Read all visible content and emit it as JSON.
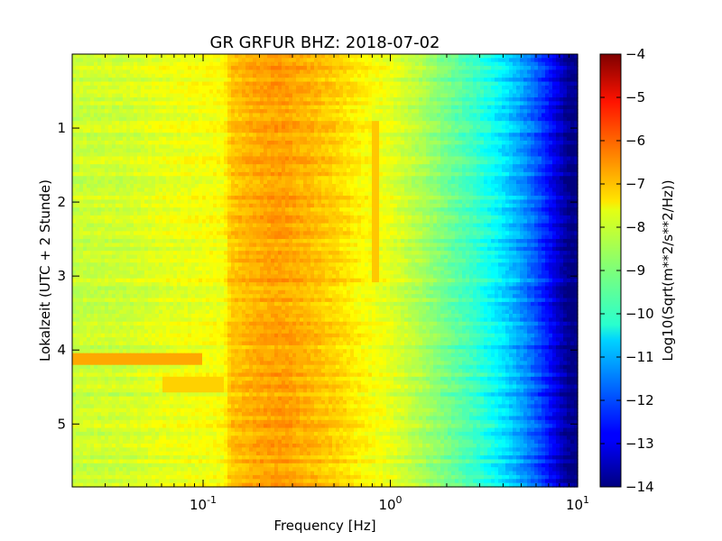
{
  "chart_data": {
    "type": "heatmap",
    "title": "GR GRFUR BHZ: 2018-07-02",
    "xlabel": "Frequency [Hz]",
    "ylabel": "Lokalzeit (UTC + 2 Stunde)",
    "xscale": "log",
    "xlim": [
      0.02,
      10
    ],
    "ylim": [
      5.85,
      0.0
    ],
    "y_axis_inverted": true,
    "x_tick_labels": [
      {
        "value": 0.1,
        "base": "10",
        "exp": "-1"
      },
      {
        "value": 1,
        "base": "10",
        "exp": "0"
      },
      {
        "value": 10,
        "base": "10",
        "exp": "1"
      }
    ],
    "y_ticks": [
      1,
      2,
      3,
      4,
      5
    ],
    "y_tick_labels": [
      "1",
      "2",
      "3",
      "4",
      "5"
    ],
    "colorbar": {
      "label": "Log10(Sqrt(m**2/s**2/Hz))",
      "range": [
        -14,
        -4
      ],
      "ticks": [
        -4,
        -5,
        -6,
        -7,
        -8,
        -9,
        -10,
        -11,
        -12,
        -13,
        -14
      ],
      "tick_labels": [
        "−4",
        "−5",
        "−6",
        "−7",
        "−8",
        "−9",
        "−10",
        "−11",
        "−12",
        "−13",
        "−14"
      ],
      "colormap": "jet"
    },
    "spectrum_profile": [
      {
        "f": 0.02,
        "v": -8.3
      },
      {
        "f": 0.04,
        "v": -8.2
      },
      {
        "f": 0.06,
        "v": -8.0
      },
      {
        "f": 0.13,
        "v": -7.8
      },
      {
        "f": 0.14,
        "v": -7.2
      },
      {
        "f": 0.2,
        "v": -6.9
      },
      {
        "f": 0.26,
        "v": -6.8
      },
      {
        "f": 0.35,
        "v": -7.0
      },
      {
        "f": 0.5,
        "v": -7.3
      },
      {
        "f": 0.7,
        "v": -7.7
      },
      {
        "f": 1.0,
        "v": -8.0
      },
      {
        "f": 1.5,
        "v": -8.6
      },
      {
        "f": 2.0,
        "v": -9.1
      },
      {
        "f": 3.0,
        "v": -9.8
      },
      {
        "f": 4.0,
        "v": -10.5
      },
      {
        "f": 5.0,
        "v": -11.2
      },
      {
        "f": 6.0,
        "v": -11.9
      },
      {
        "f": 7.0,
        "v": -12.6
      },
      {
        "f": 8.0,
        "v": -13.3
      },
      {
        "f": 9.0,
        "v": -13.9
      },
      {
        "f": 10.0,
        "v": -14.0
      }
    ],
    "features": [
      {
        "f_min": 0.02,
        "f_max": 0.1,
        "t_min": 4.05,
        "t_max": 4.2,
        "v": -6.9
      },
      {
        "f_min": 0.06,
        "f_max": 0.13,
        "t_min": 4.35,
        "t_max": 4.55,
        "v": -7.3
      },
      {
        "f_min": 0.8,
        "f_max": 0.86,
        "t_min": 0.9,
        "t_max": 3.1,
        "v": -7.2
      }
    ]
  }
}
